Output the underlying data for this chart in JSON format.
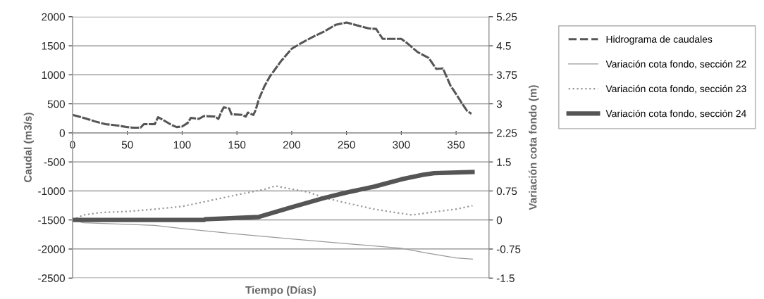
{
  "chart_data": {
    "type": "line",
    "xlabel": "Tiempo (Días)",
    "ylabel": "Caudal (m3/s)",
    "y2label": "Variación cota fondo (m)",
    "xlim": [
      0,
      380
    ],
    "xticks": [
      0,
      50,
      100,
      150,
      200,
      250,
      300,
      350
    ],
    "ylim": [
      -2500,
      2000
    ],
    "yticks": [
      -2500,
      -2000,
      -1500,
      -1000,
      -500,
      0,
      500,
      1000,
      1500,
      2000
    ],
    "y2lim": [
      -1.5,
      5.25
    ],
    "y2ticks": [
      -1.5,
      -0.75,
      0,
      0.75,
      1.5,
      2.25,
      3,
      3.75,
      4.5,
      5.25
    ],
    "grid": "y",
    "legend": "right",
    "marker": "none",
    "series": [
      {
        "name": "Hidrograma de caudales",
        "color": "#555555",
        "line_style": "dashed",
        "x": [
          0,
          10,
          20,
          30,
          40,
          50,
          55,
          62,
          65,
          75,
          78,
          82,
          90,
          95,
          100,
          105,
          108,
          115,
          120,
          130,
          133,
          136,
          138,
          143,
          145,
          155,
          158,
          160,
          165,
          167,
          170,
          175,
          180,
          190,
          200,
          210,
          220,
          230,
          240,
          250,
          260,
          270,
          277,
          283,
          300,
          305,
          315,
          325,
          332,
          338,
          345,
          350,
          355,
          360,
          364
        ],
        "values": [
          310,
          260,
          200,
          150,
          130,
          100,
          90,
          90,
          150,
          150,
          270,
          230,
          140,
          100,
          110,
          170,
          260,
          240,
          290,
          280,
          240,
          370,
          440,
          420,
          320,
          310,
          280,
          350,
          310,
          390,
          580,
          800,
          970,
          1230,
          1450,
          1560,
          1660,
          1750,
          1860,
          1900,
          1850,
          1800,
          1790,
          1620,
          1620,
          1550,
          1390,
          1290,
          1100,
          1110,
          810,
          670,
          520,
          380,
          330
        ]
      },
      {
        "name": "Variación cota fondo, sección 22",
        "color": "#9a9a9a",
        "line_style": "solid",
        "axis": "y2",
        "x": [
          0,
          10,
          50,
          75,
          100,
          150,
          200,
          250,
          300,
          325,
          350,
          365
        ],
        "values": [
          0,
          -0.07,
          -0.11,
          -0.14,
          -0.22,
          -0.36,
          -0.49,
          -0.61,
          -0.73,
          -0.86,
          -0.98,
          -1.01
        ]
      },
      {
        "name": "Variación cota fondo, sección 23",
        "color": "#999999",
        "line_style": "dotted",
        "axis": "y2",
        "x": [
          0,
          10,
          25,
          50,
          75,
          100,
          125,
          150,
          175,
          185,
          200,
          215,
          230,
          250,
          275,
          300,
          310,
          325,
          350,
          365
        ],
        "values": [
          0,
          0.13,
          0.19,
          0.22,
          0.28,
          0.35,
          0.5,
          0.65,
          0.79,
          0.88,
          0.8,
          0.72,
          0.57,
          0.44,
          0.28,
          0.17,
          0.13,
          0.19,
          0.28,
          0.37
        ]
      },
      {
        "name": "Variación cota fondo, sección 24",
        "color": "#555555",
        "line_style": "solid",
        "axis": "y2",
        "x": [
          0,
          120,
          121,
          170,
          200,
          230,
          250,
          275,
          300,
          320,
          330,
          365
        ],
        "values": [
          0,
          0,
          0.02,
          0.08,
          0.33,
          0.57,
          0.71,
          0.86,
          1.05,
          1.17,
          1.21,
          1.24
        ]
      }
    ]
  }
}
